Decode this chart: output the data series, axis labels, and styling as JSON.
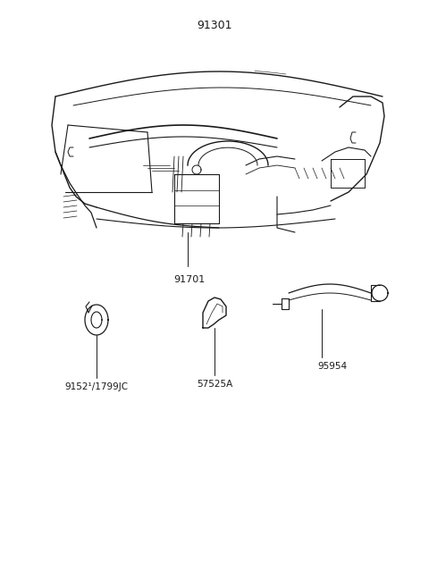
{
  "title": "91301",
  "background_color": "#ffffff",
  "line_color": "#1a1a1a",
  "label_color": "#1a1a1a",
  "label_91701": "91701",
  "label_91521": "9152¹/1799JC",
  "label_57525A": "57525A",
  "label_95954": "95954",
  "fig_width": 4.8,
  "fig_height": 6.57,
  "dpi": 100
}
